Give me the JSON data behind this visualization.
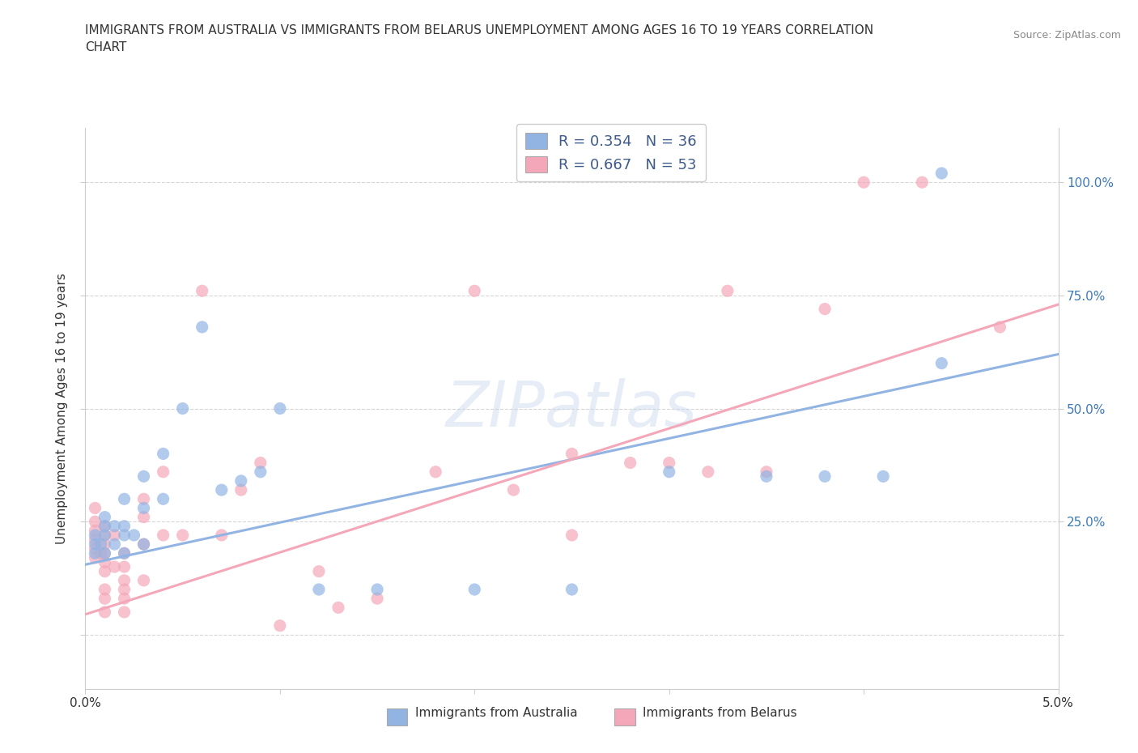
{
  "title_line1": "IMMIGRANTS FROM AUSTRALIA VS IMMIGRANTS FROM BELARUS UNEMPLOYMENT AMONG AGES 16 TO 19 YEARS CORRELATION",
  "title_line2": "CHART",
  "source": "Source: ZipAtlas.com",
  "ylabel": "Unemployment Among Ages 16 to 19 years",
  "xlim": [
    0.0,
    0.05
  ],
  "ylim": [
    -0.12,
    1.12
  ],
  "R_australia": 0.354,
  "N_australia": 36,
  "R_belarus": 0.667,
  "N_belarus": 53,
  "color_australia": "#92b4e3",
  "color_belarus": "#f4a7b9",
  "color_text": "#3d5a8a",
  "background_color": "#ffffff",
  "grid_color": "#cccccc",
  "aus_trendline": [
    0.0,
    0.05,
    0.155,
    0.62
  ],
  "bel_trendline": [
    0.0,
    0.05,
    0.045,
    0.73
  ],
  "australia_x": [
    0.0005,
    0.0005,
    0.0005,
    0.0008,
    0.001,
    0.001,
    0.001,
    0.001,
    0.0015,
    0.0015,
    0.002,
    0.002,
    0.002,
    0.002,
    0.0025,
    0.003,
    0.003,
    0.003,
    0.004,
    0.004,
    0.005,
    0.006,
    0.007,
    0.008,
    0.009,
    0.01,
    0.012,
    0.015,
    0.02,
    0.025,
    0.03,
    0.035,
    0.038,
    0.041,
    0.044,
    0.044
  ],
  "australia_y": [
    0.18,
    0.2,
    0.22,
    0.2,
    0.18,
    0.22,
    0.24,
    0.26,
    0.2,
    0.24,
    0.18,
    0.22,
    0.24,
    0.3,
    0.22,
    0.2,
    0.28,
    0.35,
    0.3,
    0.4,
    0.5,
    0.68,
    0.32,
    0.34,
    0.36,
    0.5,
    0.1,
    0.1,
    0.1,
    0.1,
    0.36,
    0.35,
    0.35,
    0.35,
    0.6,
    1.02
  ],
  "belarus_x": [
    0.0005,
    0.0005,
    0.0005,
    0.0005,
    0.0005,
    0.0005,
    0.0008,
    0.001,
    0.001,
    0.001,
    0.001,
    0.001,
    0.001,
    0.001,
    0.001,
    0.001,
    0.0015,
    0.0015,
    0.002,
    0.002,
    0.002,
    0.002,
    0.002,
    0.002,
    0.003,
    0.003,
    0.003,
    0.003,
    0.004,
    0.004,
    0.005,
    0.006,
    0.007,
    0.008,
    0.009,
    0.01,
    0.012,
    0.013,
    0.015,
    0.018,
    0.02,
    0.022,
    0.025,
    0.025,
    0.028,
    0.03,
    0.032,
    0.033,
    0.035,
    0.038,
    0.04,
    0.043,
    0.047
  ],
  "belarus_y": [
    0.17,
    0.19,
    0.21,
    0.23,
    0.25,
    0.28,
    0.18,
    0.05,
    0.08,
    0.1,
    0.14,
    0.16,
    0.18,
    0.2,
    0.22,
    0.24,
    0.15,
    0.22,
    0.05,
    0.08,
    0.1,
    0.12,
    0.15,
    0.18,
    0.12,
    0.2,
    0.26,
    0.3,
    0.22,
    0.36,
    0.22,
    0.76,
    0.22,
    0.32,
    0.38,
    0.02,
    0.14,
    0.06,
    0.08,
    0.36,
    0.76,
    0.32,
    0.22,
    0.4,
    0.38,
    0.38,
    0.36,
    0.76,
    0.36,
    0.72,
    1.0,
    1.0,
    0.68
  ]
}
